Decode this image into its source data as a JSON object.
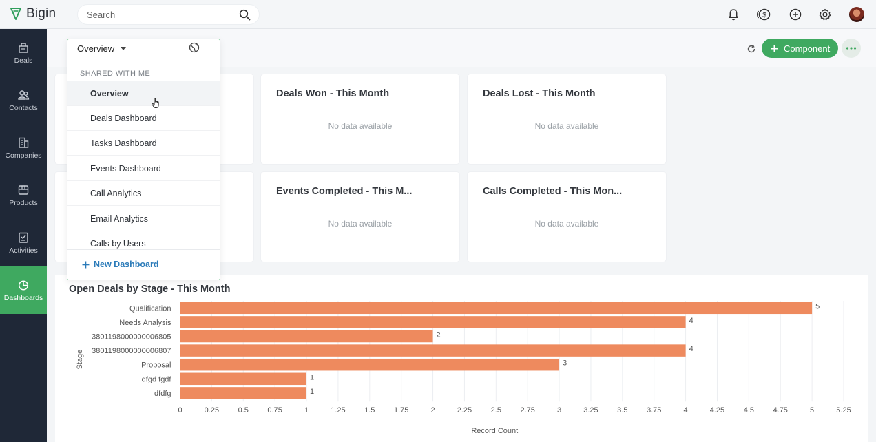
{
  "app": {
    "name": "Bigin"
  },
  "search": {
    "placeholder": "Search"
  },
  "top_icons": [
    "bell-icon",
    "coin-icon",
    "plus-circle-icon",
    "gear-icon"
  ],
  "sidebar": {
    "items": [
      {
        "label": "Deals",
        "icon": "deals-icon"
      },
      {
        "label": "Contacts",
        "icon": "contacts-icon"
      },
      {
        "label": "Companies",
        "icon": "companies-icon"
      },
      {
        "label": "Products",
        "icon": "products-icon"
      },
      {
        "label": "Activities",
        "icon": "activities-icon"
      },
      {
        "label": "Dashboards",
        "icon": "dashboards-icon",
        "active": true
      }
    ]
  },
  "header": {
    "component_label": "Component"
  },
  "dropdown": {
    "selected": "Overview",
    "section_label": "SHARED WITH ME",
    "items": [
      "Overview",
      "Deals Dashboard",
      "Tasks Dashboard",
      "Events Dashboard",
      "Call Analytics",
      "Email Analytics",
      "Calls by Users"
    ],
    "hovered_index": 0,
    "new_label": "New Dashboard"
  },
  "cards": [
    {
      "title": "Deals Won - This Month",
      "empty": "No data available"
    },
    {
      "title": "Deals Lost - This Month",
      "empty": "No data available"
    },
    {
      "title": "Events Completed - This M...",
      "empty": "No data available"
    },
    {
      "title": "Calls Completed - This Mon...",
      "empty": "No data available"
    }
  ],
  "colors": {
    "accent": "#3fa960",
    "bar": "#ee8a5e",
    "sidebar": "#1f2837",
    "link": "#2b7bb9"
  },
  "chart_data": {
    "type": "bar",
    "orientation": "horizontal",
    "title": "Open Deals by Stage - This Month",
    "xlabel": "Record Count",
    "ylabel": "Stage",
    "categories": [
      "Qualification",
      "Needs Analysis",
      "3801198000000006805",
      "3801198000000006807",
      "Proposal",
      "dfgd fgdf",
      "dfdfg"
    ],
    "values": [
      5,
      4,
      2,
      4,
      3,
      1,
      1
    ],
    "xlim": [
      0,
      5.25
    ],
    "xticks": [
      "0",
      "0.25",
      "0.5",
      "0.75",
      "1",
      "1.25",
      "1.5",
      "1.75",
      "2",
      "2.25",
      "2.5",
      "2.75",
      "3",
      "3.25",
      "3.5",
      "3.75",
      "4",
      "4.25",
      "4.5",
      "4.75",
      "5",
      "5.25"
    ],
    "grid": true
  }
}
